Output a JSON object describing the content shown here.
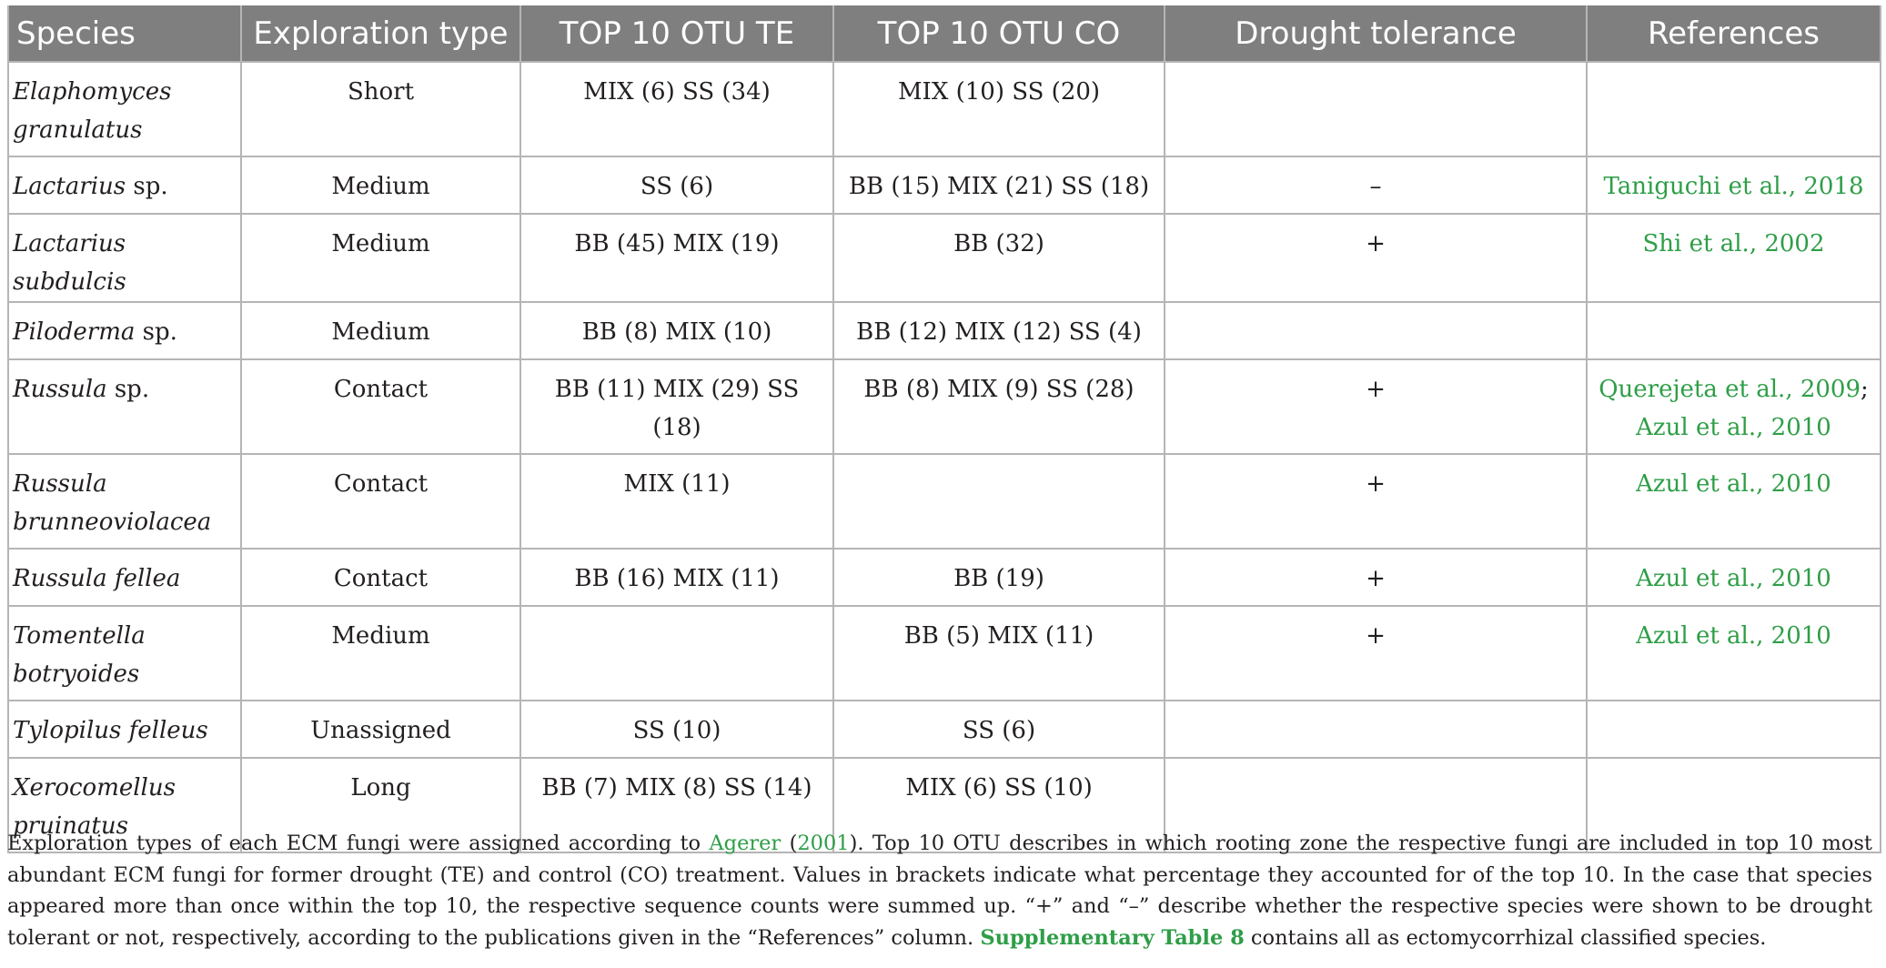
{
  "table": {
    "headers": [
      "Species",
      "Exploration type",
      "TOP 10 OTU TE",
      "TOP 10 OTU CO",
      "Drought tolerance",
      "References"
    ],
    "rows": [
      {
        "species": "Elaphomyces granulatus",
        "species_suffix": "",
        "exploration": "Short",
        "te": "MIX (6) SS (34)",
        "co": "MIX (10) SS (20)",
        "drought": "",
        "refs": []
      },
      {
        "species": "Lactarius",
        "species_suffix": " sp.",
        "exploration": "Medium",
        "te": "SS (6)",
        "co": "BB (15) MIX (21) SS (18)",
        "drought": "–",
        "refs": [
          {
            "authors": "Taniguchi et al.",
            "year": "2018",
            "end": ""
          }
        ]
      },
      {
        "species": "Lactarius subdulcis",
        "species_suffix": "",
        "exploration": "Medium",
        "te": "BB (45) MIX (19)",
        "co": "BB (32)",
        "drought": "+",
        "refs": [
          {
            "authors": "Shi et al.",
            "year": "2002",
            "end": ""
          }
        ]
      },
      {
        "species": "Piloderma",
        "species_suffix": " sp.",
        "exploration": "Medium",
        "te": "BB (8) MIX (10)",
        "co": "BB (12) MIX (12) SS (4)",
        "drought": "",
        "refs": []
      },
      {
        "species": "Russula",
        "species_suffix": " sp.",
        "exploration": "Contact",
        "te": "BB (11) MIX (29) SS (18)",
        "co": "BB (8) MIX (9) SS (28)",
        "drought": "+",
        "refs": [
          {
            "authors": "Querejeta et al.",
            "year": "2009",
            "end": ";"
          },
          {
            "authors": "Azul et al.",
            "year": "2010",
            "end": ""
          }
        ]
      },
      {
        "species": "Russula brunneoviolacea",
        "species_suffix": "",
        "exploration": "Contact",
        "te": "MIX (11)",
        "co": "",
        "drought": "+",
        "refs": [
          {
            "authors": "Azul et al.",
            "year": "2010",
            "end": ""
          }
        ]
      },
      {
        "species": "Russula fellea",
        "species_suffix": "",
        "exploration": "Contact",
        "te": "BB (16) MIX (11)",
        "co": "BB (19)",
        "drought": "+",
        "refs": [
          {
            "authors": "Azul et al.",
            "year": "2010",
            "end": ""
          }
        ]
      },
      {
        "species": "Tomentella botryoides",
        "species_suffix": "",
        "exploration": "Medium",
        "te": "",
        "co": "BB (5) MIX (11)",
        "drought": "+",
        "refs": [
          {
            "authors": "Azul et al.",
            "year": "2010",
            "end": ""
          }
        ]
      },
      {
        "species": "Tylopilus felleus",
        "species_suffix": "",
        "exploration": "Unassigned",
        "te": "SS (10)",
        "co": "SS (6)",
        "drought": "",
        "refs": []
      },
      {
        "species": "Xerocomellus pruinatus",
        "species_suffix": "",
        "exploration": "Long",
        "te": "BB (7) MIX (8) SS (14)",
        "co": "MIX (6) SS (10)",
        "drought": "",
        "refs": []
      }
    ]
  },
  "caption": {
    "part1": "Exploration types of each ECM fungi were assigned according to ",
    "agerer_author": "Agerer",
    "agerer_open": " (",
    "agerer_year": "2001",
    "agerer_close": "). ",
    "part2": "Top 10 OTU describes in which rooting zone the respective fungi are included in top 10 most abundant ECM fungi for former drought (TE) and control (CO) treatment. Values in brackets indicate what percentage they accounted for of the top 10. In the case that species appeared more than once within the top 10, the respective sequence counts were summed up. “+” and “–” describe whether the respective species were shown to be drought tolerant or not, respectively, according to the publications given in the “References” column. ",
    "supp_link": "Supplementary Table 8",
    "part3": " contains all as ectomycorrhizal classified species."
  }
}
